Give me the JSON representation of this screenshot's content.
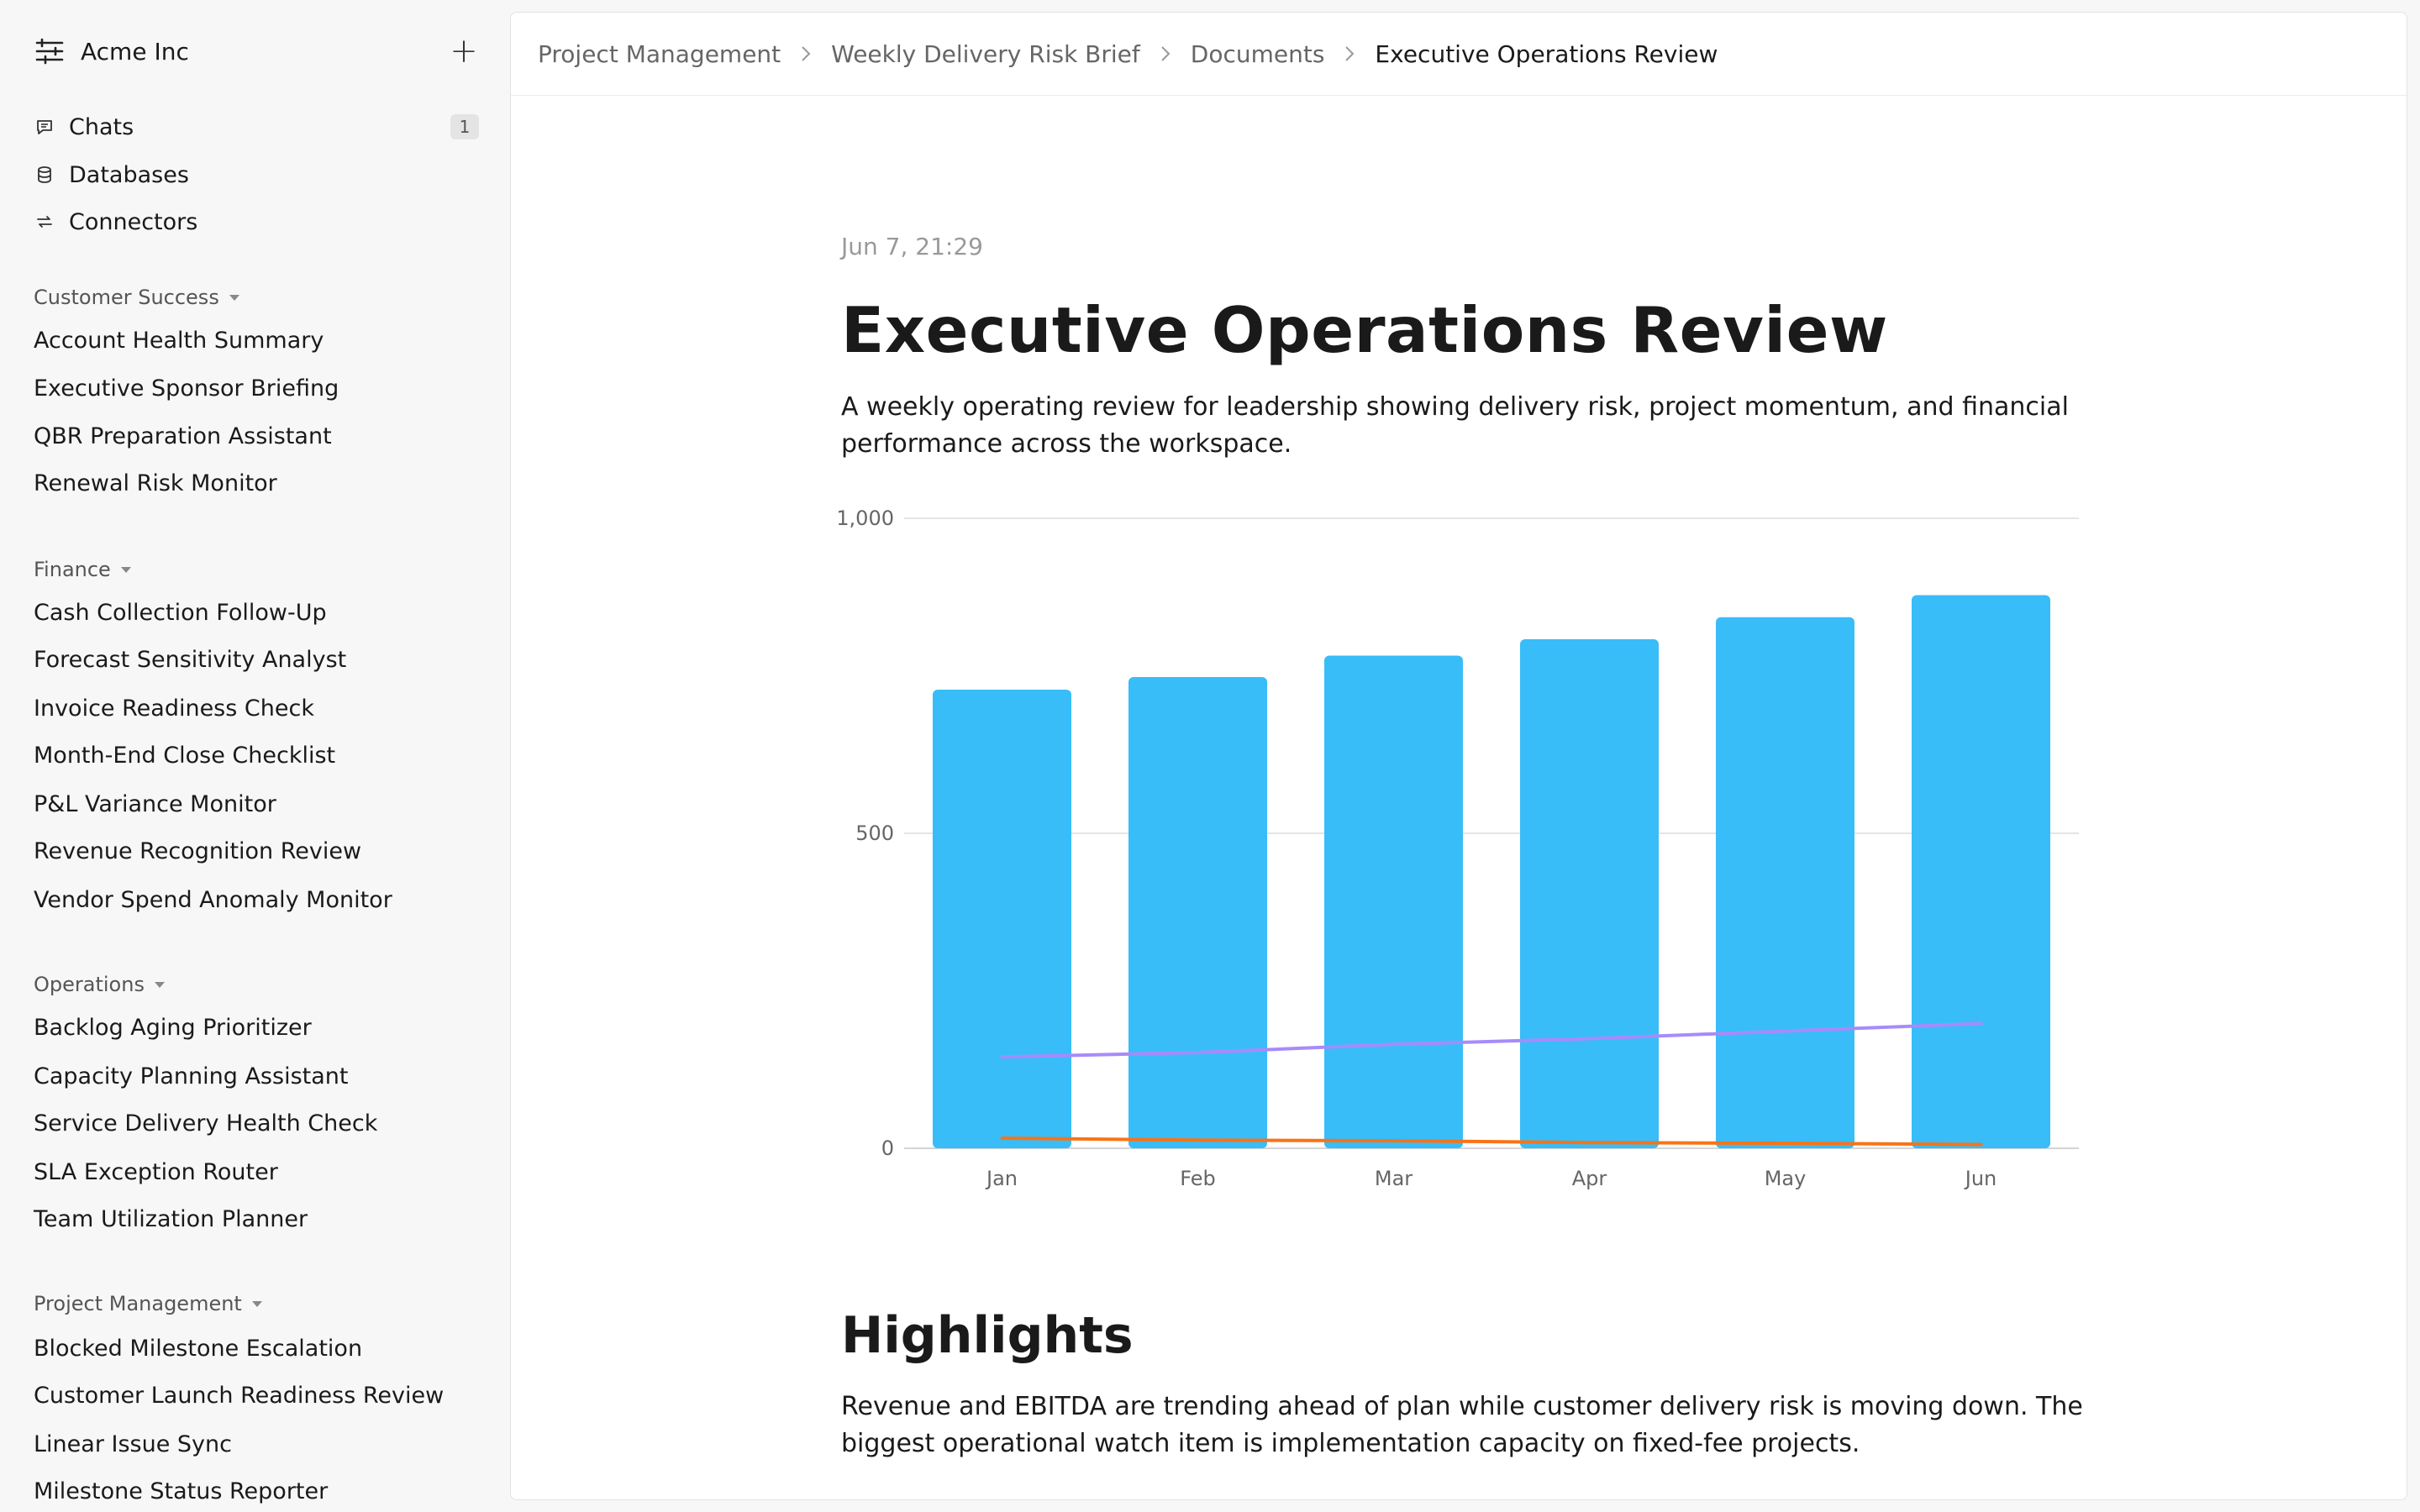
{
  "workspace": {
    "name": "Acme Inc",
    "add_label": "+"
  },
  "nav": [
    {
      "label": "Chats",
      "icon": "chat-icon",
      "badge": "1"
    },
    {
      "label": "Databases",
      "icon": "database-icon"
    },
    {
      "label": "Connectors",
      "icon": "connectors-icon"
    }
  ],
  "sections": [
    {
      "title": "Customer Success",
      "items": [
        "Account Health Summary",
        "Executive Sponsor Briefing",
        "QBR Preparation Assistant",
        "Renewal Risk Monitor"
      ]
    },
    {
      "title": "Finance",
      "items": [
        "Cash Collection Follow-Up",
        "Forecast Sensitivity Analyst",
        "Invoice Readiness Check",
        "Month-End Close Checklist",
        "P&L Variance Monitor",
        "Revenue Recognition Review",
        "Vendor Spend Anomaly Monitor"
      ]
    },
    {
      "title": "Operations",
      "items": [
        "Backlog Aging Prioritizer",
        "Capacity Planning Assistant",
        "Service Delivery Health Check",
        "SLA Exception Router",
        "Team Utilization Planner"
      ]
    },
    {
      "title": "Project Management",
      "items": [
        "Blocked Milestone Escalation",
        "Customer Launch Readiness Review",
        "Linear Issue Sync",
        "Milestone Status Reporter"
      ]
    }
  ],
  "breadcrumb": [
    "Project Management",
    "Weekly Delivery Risk Brief",
    "Documents",
    "Executive Operations Review"
  ],
  "doc": {
    "date": "Jun 7, 21:29",
    "title": "Executive Operations Review",
    "description": "A weekly operating review for leadership showing delivery risk, project momentum, and financial performance across the workspace.",
    "highlights_heading": "Highlights",
    "highlights_text": "Revenue and EBITDA are trending ahead of plan while customer delivery risk is moving down. The biggest operational watch item is implementation capacity on fixed-fee projects."
  },
  "chart_data": {
    "type": "bar",
    "categories": [
      "Jan",
      "Feb",
      "Mar",
      "Apr",
      "May",
      "Jun"
    ],
    "ylim": [
      0,
      1000
    ],
    "yticks": [
      0,
      500,
      1000
    ],
    "ytick_labels": [
      "0",
      "500",
      "1,000"
    ],
    "grid": true,
    "series": [
      {
        "kind": "bar",
        "color": "#38bdf8",
        "values": [
          728,
          748,
          782,
          808,
          843,
          878
        ]
      },
      {
        "kind": "line",
        "color": "#a78bfa",
        "values": [
          145,
          152,
          165,
          174,
          186,
          198
        ]
      },
      {
        "kind": "line",
        "color": "#f97316",
        "values": [
          16,
          13,
          12,
          9,
          8,
          6
        ]
      }
    ]
  },
  "colors": {
    "accent": "#38bdf8",
    "grid": "#e5e5e5",
    "muted": "#999999"
  }
}
